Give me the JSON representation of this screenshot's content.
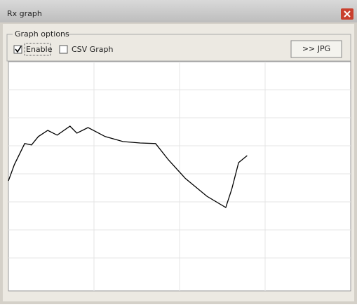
{
  "window": {
    "title": "Rx graph"
  },
  "options": {
    "group_label": "Graph options",
    "checkboxes": [
      {
        "label": "Enable",
        "checked": true
      },
      {
        "label": "CSV Graph",
        "checked": false
      }
    ],
    "button": ">> JPG"
  },
  "chart_data": {
    "type": "line",
    "color": "#000000",
    "grid": true,
    "xlim": [
      0,
      4
    ],
    "xticks": [
      1,
      2,
      3
    ],
    "ylim": [
      0,
      8
    ],
    "yticks": [
      1,
      2,
      3,
      4,
      5,
      6,
      7
    ],
    "x": [
      0,
      0.07,
      0.19,
      0.27,
      0.35,
      0.46,
      0.57,
      0.72,
      0.8,
      0.93,
      1.13,
      1.34,
      1.54,
      1.72,
      1.87,
      2.07,
      2.32,
      2.54,
      2.61,
      2.69,
      2.79
    ],
    "values": [
      3.75,
      4.33,
      5.08,
      5.03,
      5.33,
      5.55,
      5.38,
      5.7,
      5.45,
      5.65,
      5.33,
      5.15,
      5.1,
      5.08,
      4.5,
      3.83,
      3.2,
      2.8,
      3.45,
      4.4,
      4.65
    ]
  }
}
